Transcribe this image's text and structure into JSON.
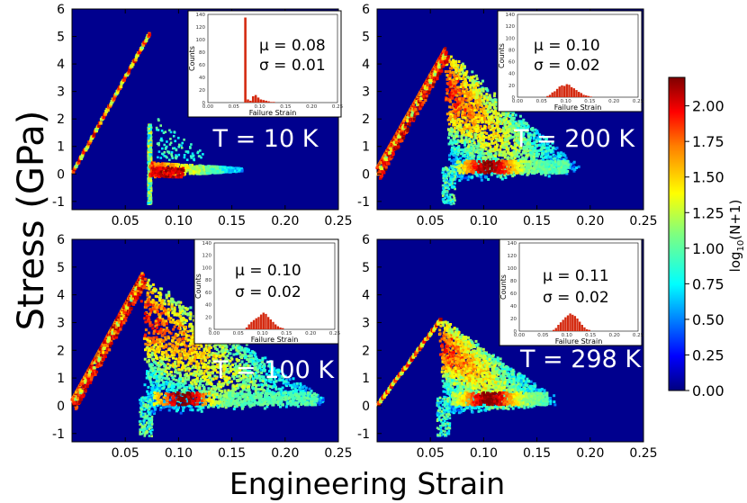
{
  "figure": {
    "ylabel": "Stress (GPa)",
    "xlabel": "Engineering Strain",
    "colorbar": {
      "label_base": "log",
      "label_sub": "10",
      "label_rest": "(N+1)",
      "ticks": [
        "0.00",
        "0.25",
        "0.50",
        "0.75",
        "1.00",
        "1.25",
        "1.50",
        "1.75",
        "2.00"
      ],
      "range": [
        0,
        2.2
      ]
    },
    "colors": {
      "background": "#00008e",
      "histogram_bar": "#d42a10",
      "colormap": [
        "#00007f",
        "#0000ff",
        "#007fff",
        "#00ffff",
        "#7fff7f",
        "#ffff00",
        "#ff7f00",
        "#ff0000",
        "#7f0000"
      ]
    }
  },
  "chart_data": [
    {
      "type": "heatmap",
      "panel": "top-left",
      "temperature_label": "T = 10 K",
      "xlim": [
        0,
        0.25
      ],
      "ylim": [
        -1.3,
        6
      ],
      "xticks": [
        "0.05",
        "0.10",
        "0.15",
        "0.20",
        "0.25"
      ],
      "yticks": [
        "-1",
        "0",
        "1",
        "2",
        "3",
        "4",
        "5",
        "6"
      ],
      "xtick_values": [
        0.05,
        0.1,
        0.15,
        0.2,
        0.25
      ],
      "ytick_values": [
        -1,
        0,
        1,
        2,
        3,
        4,
        5,
        6
      ],
      "elastic_slope": 70,
      "peak_strain": 0.073,
      "peak_stress": 5.1,
      "failure_strain_spread": 0.004,
      "tail_end_strain": 0.16,
      "post_failure_mode": "band",
      "inset": {
        "type": "bar",
        "xlabel": "Failure Strain",
        "ylabel": "Counts",
        "xlim": [
          0,
          0.25
        ],
        "ylim": [
          0,
          140
        ],
        "xticks": [
          "0.00",
          "0.05",
          "0.10",
          "0.15",
          "0.20",
          "0.25"
        ],
        "yticks": [
          "0",
          "20",
          "40",
          "60",
          "80",
          "100",
          "120",
          "140"
        ],
        "mu_label": "μ = 0.08",
        "sigma_label": "σ = 0.01",
        "bins": [
          0.07,
          0.075,
          0.08,
          0.085,
          0.09,
          0.095,
          0.1,
          0.105,
          0.11,
          0.115,
          0.12,
          0.125
        ],
        "counts": [
          135,
          5,
          3,
          10,
          12,
          8,
          5,
          4,
          3,
          2,
          1,
          1
        ],
        "bin_width": 0.005
      }
    },
    {
      "type": "heatmap",
      "panel": "top-right",
      "temperature_label": "T = 200 K",
      "xlim": [
        0,
        0.25
      ],
      "ylim": [
        -1.3,
        6
      ],
      "xticks": [
        "0.05",
        "0.10",
        "0.15",
        "0.20",
        "0.25"
      ],
      "yticks": [
        "-1",
        "0",
        "1",
        "2",
        "3",
        "4",
        "5",
        "6"
      ],
      "xtick_values": [
        0.05,
        0.1,
        0.15,
        0.2,
        0.25
      ],
      "ytick_values": [
        -1,
        0,
        1,
        2,
        3,
        4,
        5,
        6
      ],
      "elastic_slope": 68,
      "peak_strain": 0.065,
      "peak_stress": 4.4,
      "failure_strain_spread": 0.02,
      "tail_end_strain": 0.19,
      "post_failure_mode": "triangle",
      "inset": {
        "type": "bar",
        "xlabel": "Failure Strain",
        "ylabel": "Counts",
        "xlim": [
          0,
          0.25
        ],
        "ylim": [
          0,
          140
        ],
        "xticks": [
          "0.00",
          "0.05",
          "0.10",
          "0.15",
          "0.20",
          "0.25"
        ],
        "yticks": [
          "0",
          "20",
          "40",
          "60",
          "80",
          "100",
          "120",
          "140"
        ],
        "mu_label": "μ = 0.10",
        "sigma_label": "σ = 0.02",
        "bins": [
          0.06,
          0.065,
          0.07,
          0.075,
          0.08,
          0.085,
          0.09,
          0.095,
          0.1,
          0.105,
          0.11,
          0.115,
          0.12,
          0.125,
          0.13,
          0.135,
          0.14,
          0.145,
          0.15
        ],
        "counts": [
          2,
          4,
          8,
          10,
          14,
          18,
          20,
          19,
          22,
          21,
          17,
          15,
          12,
          9,
          7,
          4,
          3,
          2,
          1
        ],
        "bin_width": 0.005
      }
    },
    {
      "type": "heatmap",
      "panel": "bottom-left",
      "temperature_label": "T = 100 K",
      "xlim": [
        0,
        0.25
      ],
      "ylim": [
        -1.3,
        6
      ],
      "xticks": [
        "0.05",
        "0.10",
        "0.15",
        "0.20",
        "0.25"
      ],
      "yticks": [
        "-1",
        "0",
        "1",
        "2",
        "3",
        "4",
        "5",
        "6"
      ],
      "xtick_values": [
        0.05,
        0.1,
        0.15,
        0.2,
        0.25
      ],
      "ytick_values": [
        -1,
        0,
        1,
        2,
        3,
        4,
        5,
        6
      ],
      "elastic_slope": 69,
      "peak_strain": 0.067,
      "peak_stress": 4.6,
      "failure_strain_spread": 0.015,
      "tail_end_strain": 0.24,
      "post_failure_mode": "triangle",
      "inset": {
        "type": "bar",
        "xlabel": "Failure Strain",
        "ylabel": "Counts",
        "xlim": [
          0,
          0.25
        ],
        "ylim": [
          0,
          140
        ],
        "xticks": [
          "0.00",
          "0.05",
          "0.10",
          "0.15",
          "0.20",
          "0.25"
        ],
        "yticks": [
          "0",
          "20",
          "40",
          "60",
          "80",
          "100",
          "120",
          "140"
        ],
        "mu_label": "μ = 0.10",
        "sigma_label": "σ = 0.02",
        "bins": [
          0.065,
          0.07,
          0.075,
          0.08,
          0.085,
          0.09,
          0.095,
          0.1,
          0.105,
          0.11,
          0.115,
          0.12,
          0.125,
          0.13,
          0.135,
          0.14
        ],
        "counts": [
          3,
          8,
          12,
          15,
          18,
          20,
          24,
          27,
          25,
          20,
          16,
          12,
          8,
          5,
          3,
          2
        ],
        "bin_width": 0.005
      }
    },
    {
      "type": "heatmap",
      "panel": "bottom-right",
      "temperature_label": "T = 298 K",
      "xlim": [
        0,
        0.25
      ],
      "ylim": [
        -1.3,
        6
      ],
      "xticks": [
        "0.05",
        "0.10",
        "0.15",
        "0.20",
        "0.25"
      ],
      "yticks": [
        "-1",
        "0",
        "1",
        "2",
        "3",
        "4",
        "5",
        "6"
      ],
      "xtick_values": [
        0.05,
        0.1,
        0.15,
        0.2,
        0.25
      ],
      "ytick_values": [
        -1,
        0,
        1,
        2,
        3,
        4,
        5,
        6
      ],
      "elastic_slope": 52,
      "peak_strain": 0.06,
      "peak_stress": 3.1,
      "failure_strain_spread": 0.008,
      "tail_end_strain": 0.17,
      "post_failure_mode": "triangle",
      "inset": {
        "type": "bar",
        "xlabel": "Failure Strain",
        "ylabel": "Counts",
        "xlim": [
          0,
          0.25
        ],
        "ylim": [
          0,
          140
        ],
        "xticks": [
          "0.00",
          "0.05",
          "0.10",
          "0.15",
          "0.20",
          "0.25"
        ],
        "yticks": [
          "0",
          "20",
          "40",
          "60",
          "80",
          "100",
          "120",
          "140"
        ],
        "mu_label": "μ = 0.11",
        "sigma_label": "σ = 0.02",
        "bins": [
          0.07,
          0.075,
          0.08,
          0.085,
          0.09,
          0.095,
          0.1,
          0.105,
          0.11,
          0.115,
          0.12,
          0.125,
          0.13,
          0.135,
          0.14,
          0.145
        ],
        "counts": [
          2,
          5,
          10,
          14,
          18,
          22,
          25,
          28,
          26,
          24,
          20,
          15,
          10,
          6,
          3,
          2
        ],
        "bin_width": 0.005
      }
    }
  ]
}
